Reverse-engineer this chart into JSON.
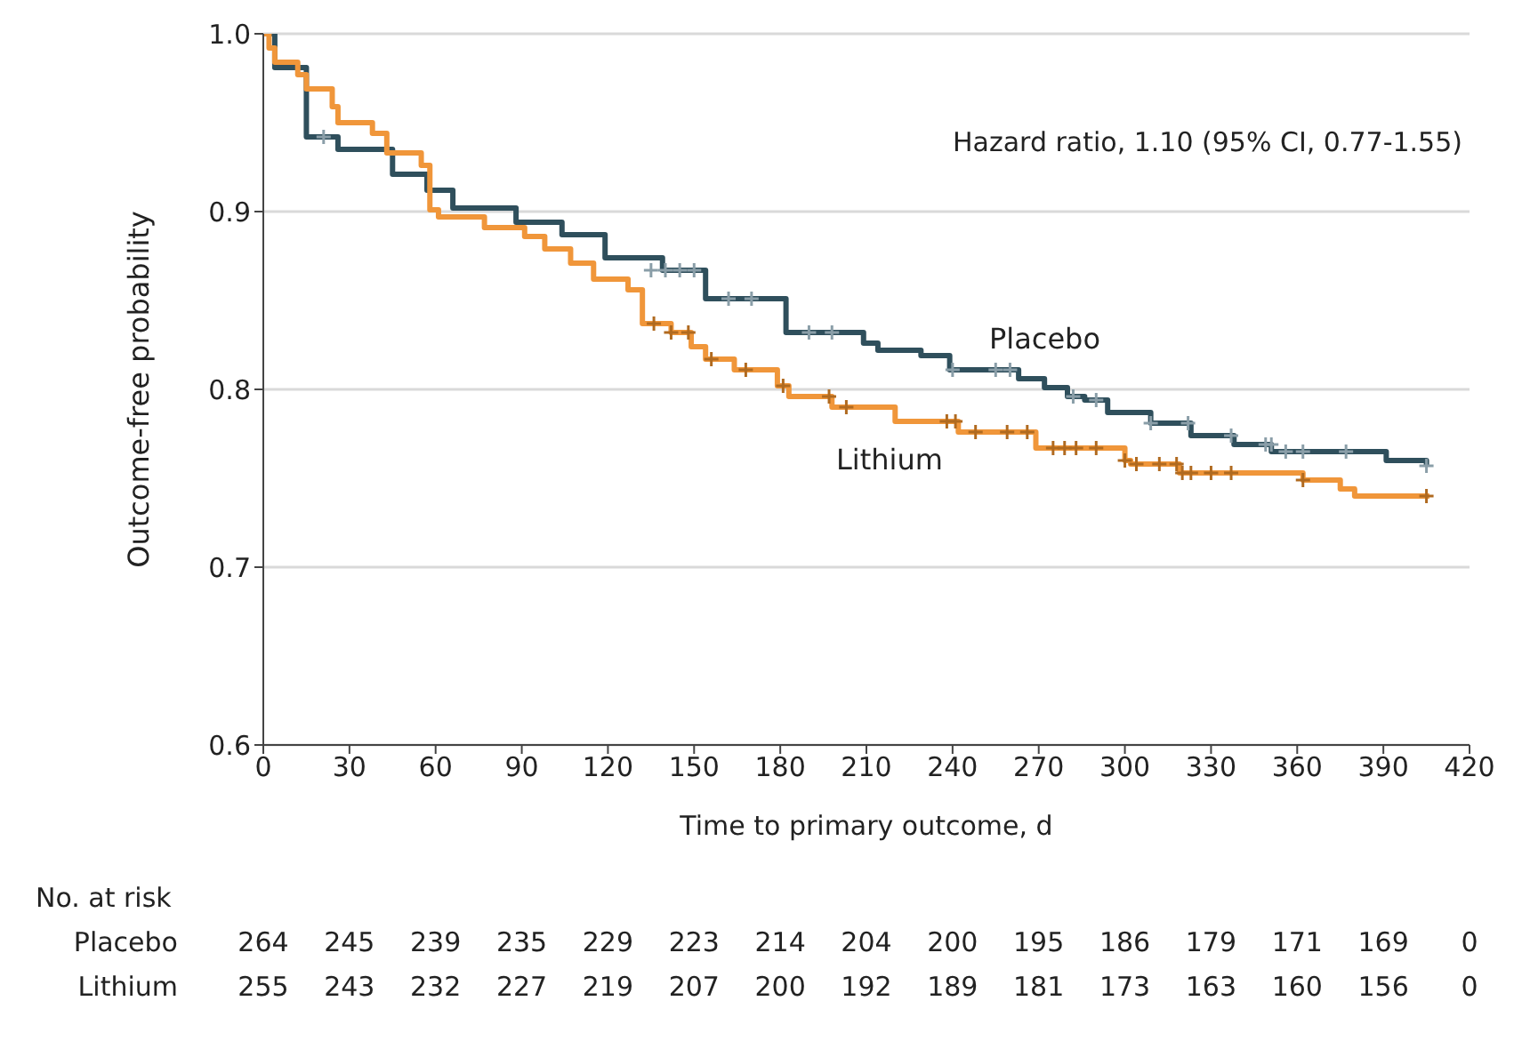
{
  "chart_data": {
    "type": "step",
    "xlabel": "Time to primary outcome, d",
    "ylabel": "Outcome-free probability",
    "xlim": [
      0,
      420
    ],
    "xticks": [
      0,
      30,
      60,
      90,
      120,
      150,
      180,
      210,
      240,
      270,
      300,
      330,
      360,
      390,
      420
    ],
    "ylim": [
      0.6,
      1.0
    ],
    "yticks": [
      0.6,
      0.7,
      0.8,
      0.9,
      {
        "value": 1.0,
        "label": "1.0"
      }
    ],
    "grid": "y",
    "legend": false,
    "series": [
      {
        "name": "Placebo",
        "color": "#2f4f5c",
        "x": [
          0,
          4,
          15,
          26,
          45,
          57,
          66,
          88,
          104,
          119,
          139,
          154,
          182,
          209,
          214,
          229,
          239,
          263,
          272,
          280,
          286,
          294,
          309,
          323,
          338,
          351,
          391,
          405
        ],
        "values": [
          1.0,
          0.981,
          0.942,
          0.935,
          0.921,
          0.912,
          0.902,
          0.894,
          0.887,
          0.874,
          0.867,
          0.851,
          0.832,
          0.826,
          0.822,
          0.819,
          0.811,
          0.806,
          0.801,
          0.796,
          0.794,
          0.787,
          0.781,
          0.774,
          0.769,
          0.765,
          0.76,
          0.757
        ]
      },
      {
        "name": "Lithium",
        "color": "#f0963a",
        "x": [
          0,
          2,
          4,
          12,
          15,
          24,
          26,
          38,
          43,
          55,
          58,
          61,
          77,
          91,
          98,
          107,
          115,
          127,
          132,
          142,
          149,
          154,
          164,
          179,
          183,
          198,
          220,
          242,
          269,
          300,
          302,
          319,
          362,
          375,
          380,
          406
        ],
        "values": [
          1.0,
          0.992,
          0.984,
          0.977,
          0.969,
          0.959,
          0.95,
          0.944,
          0.933,
          0.926,
          0.901,
          0.897,
          0.891,
          0.886,
          0.879,
          0.871,
          0.862,
          0.856,
          0.837,
          0.832,
          0.824,
          0.817,
          0.811,
          0.802,
          0.796,
          0.79,
          0.782,
          0.776,
          0.767,
          0.76,
          0.758,
          0.753,
          0.749,
          0.744,
          0.74,
          0.74
        ]
      },
      {
        "type": "scatter",
        "marker": "cross",
        "color": "#8a9ea8",
        "x": [
          21,
          135,
          140,
          145,
          150,
          162,
          170,
          190,
          198,
          240,
          255,
          260,
          282,
          290,
          309,
          322,
          337,
          349,
          351,
          356,
          362,
          377,
          405
        ],
        "values": [
          0.942,
          0.867,
          0.867,
          0.867,
          0.867,
          0.851,
          0.851,
          0.832,
          0.832,
          0.811,
          0.811,
          0.811,
          0.796,
          0.794,
          0.781,
          0.781,
          0.774,
          0.769,
          0.769,
          0.765,
          0.765,
          0.765,
          0.757
        ]
      },
      {
        "type": "scatter",
        "marker": "cross",
        "color": "#b06a20",
        "x": [
          136,
          142,
          148,
          156,
          168,
          181,
          197,
          203,
          238,
          241,
          248,
          259,
          266,
          275,
          279,
          283,
          290,
          300,
          304,
          312,
          318,
          320,
          323,
          330,
          337,
          362,
          405
        ],
        "values": [
          0.837,
          0.832,
          0.832,
          0.817,
          0.811,
          0.802,
          0.796,
          0.79,
          0.782,
          0.782,
          0.776,
          0.776,
          0.776,
          0.767,
          0.767,
          0.767,
          0.767,
          0.76,
          0.758,
          0.758,
          0.758,
          0.753,
          0.753,
          0.753,
          0.753,
          0.749,
          0.74
        ]
      }
    ],
    "annotations": [
      "Hazard ratio, 1.10 (95% CI, 0.77-1.55)",
      "No. at risk",
      "Placebo",
      "264",
      "245",
      "239",
      "235",
      "229",
      "223",
      "214",
      "204",
      "200",
      "195",
      "186",
      "179",
      "171",
      "169",
      "0",
      "Lithium",
      "255",
      "243",
      "232",
      "227",
      "219",
      "207",
      "200",
      "192",
      "189",
      "181",
      "173",
      "163",
      "160",
      "156",
      "0"
    ]
  }
}
